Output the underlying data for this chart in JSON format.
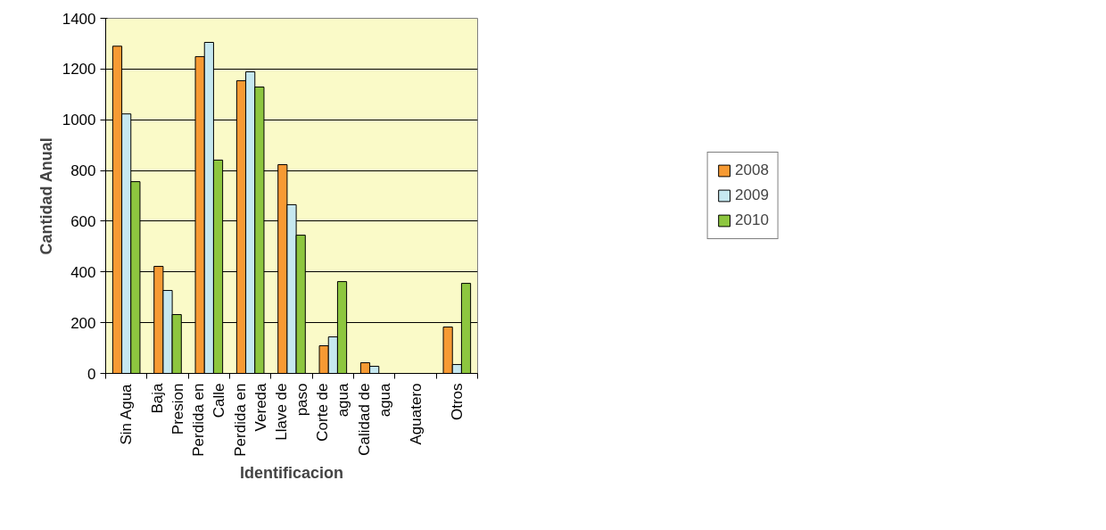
{
  "chart_data": {
    "type": "bar",
    "xlabel": "Identificacion",
    "ylabel": "Cantidad Anual",
    "categories": [
      "Sin Agua",
      "Baja\nPresion",
      "Perdida en\nCalle",
      "Perdida en\nVereda",
      "Llave de\npaso",
      "Corte de\nagua",
      "Calidad de\nagua",
      "Aguatero",
      "Otros"
    ],
    "series": [
      {
        "name": "2008",
        "color": "#f79a33",
        "values": [
          1290,
          422,
          1249,
          1154,
          823,
          109,
          42,
          null,
          183
        ]
      },
      {
        "name": "2009",
        "color": "#c6e8f0",
        "values": [
          1023,
          327,
          1305,
          1189,
          665,
          144,
          28,
          null,
          35
        ]
      },
      {
        "name": "2010",
        "color": "#8dc63f",
        "values": [
          756,
          232,
          841,
          1129,
          545,
          362,
          null,
          null,
          355
        ]
      }
    ],
    "ylim": [
      0,
      1400
    ],
    "yticks": [
      0,
      200,
      400,
      600,
      800,
      1000,
      1200,
      1400
    ],
    "grid": "y",
    "legend": "right"
  }
}
